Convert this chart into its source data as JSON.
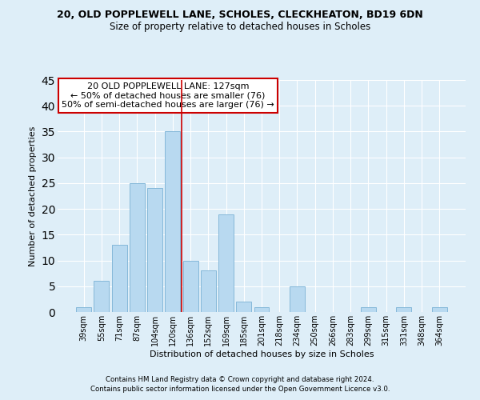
{
  "title": "20, OLD POPPLEWELL LANE, SCHOLES, CLECKHEATON, BD19 6DN",
  "subtitle": "Size of property relative to detached houses in Scholes",
  "xlabel": "Distribution of detached houses by size in Scholes",
  "ylabel": "Number of detached properties",
  "bar_labels": [
    "39sqm",
    "55sqm",
    "71sqm",
    "87sqm",
    "104sqm",
    "120sqm",
    "136sqm",
    "152sqm",
    "169sqm",
    "185sqm",
    "201sqm",
    "218sqm",
    "234sqm",
    "250sqm",
    "266sqm",
    "283sqm",
    "299sqm",
    "315sqm",
    "331sqm",
    "348sqm",
    "364sqm"
  ],
  "bar_values": [
    1,
    6,
    13,
    25,
    24,
    35,
    10,
    8,
    19,
    2,
    1,
    0,
    5,
    0,
    0,
    0,
    1,
    0,
    1,
    0,
    1
  ],
  "bar_color": "#b8d9f0",
  "bar_edge_color": "#85b8d9",
  "vline_x": 5.5,
  "vline_color": "#cc0000",
  "annotation_title": "20 OLD POPPLEWELL LANE: 127sqm",
  "annotation_line1": "← 50% of detached houses are smaller (76)",
  "annotation_line2": "50% of semi-detached houses are larger (76) →",
  "annotation_box_color": "#ffffff",
  "annotation_box_edge": "#cc0000",
  "ylim": [
    0,
    45
  ],
  "yticks": [
    0,
    5,
    10,
    15,
    20,
    25,
    30,
    35,
    40,
    45
  ],
  "footer1": "Contains HM Land Registry data © Crown copyright and database right 2024.",
  "footer2": "Contains public sector information licensed under the Open Government Licence v3.0.",
  "bg_color": "#deeef8",
  "plot_bg_color": "#deeef8",
  "title_fontsize": 9,
  "subtitle_fontsize": 8.5,
  "annotation_fontsize": 8,
  "axis_label_fontsize": 8,
  "tick_fontsize": 7
}
